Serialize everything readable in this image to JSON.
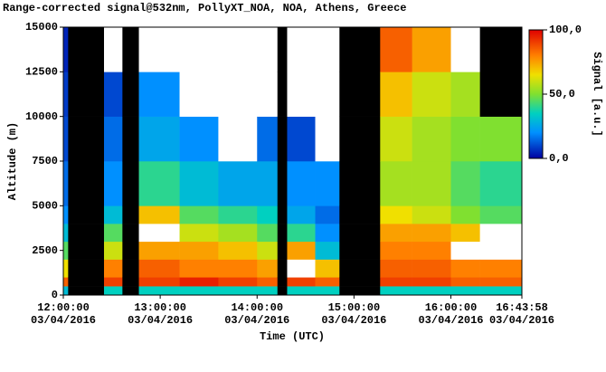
{
  "chart_data": {
    "type": "heatmap",
    "title": "Range-corrected signal@532nm, PollyXT_NOA, NOA, Athens, Greece",
    "x_label": "Time (UTC)",
    "y_label": "Altitude (m)",
    "colorbar_label": "Signal [a.u.]",
    "xlim": [
      12,
      16.7328
    ],
    "xticks": [
      {
        "value": 12,
        "label": [
          "12:00:00",
          "03/04/2016"
        ]
      },
      {
        "value": 13,
        "label": [
          "13:00:00",
          "03/04/2016"
        ]
      },
      {
        "value": 14,
        "label": [
          "14:00:00",
          "03/04/2016"
        ]
      },
      {
        "value": 15,
        "label": [
          "15:00:00",
          "03/04/2016"
        ]
      },
      {
        "value": 16,
        "label": [
          "16:00:00",
          "03/04/2016"
        ]
      },
      {
        "value": 16.7328,
        "label": [
          "16:43:58",
          "03/04/2016"
        ]
      }
    ],
    "ylim": [
      0,
      15000
    ],
    "yticks": [
      0,
      2500,
      5000,
      7500,
      10000,
      12500,
      15000
    ],
    "clim": [
      0,
      100
    ],
    "cticks": [
      {
        "value": 0,
        "label": "0,0"
      },
      {
        "value": 50,
        "label": "50,0"
      },
      {
        "value": 100,
        "label": "100,0"
      }
    ],
    "missing_color": "#000000",
    "x_edges": [
      12,
      12.05,
      12.42,
      12.61,
      12.78,
      13.2,
      13.6,
      14.0,
      14.21,
      14.31,
      14.6,
      14.85,
      15.27,
      15.6,
      16.0,
      16.3,
      16.7328
    ],
    "y_edges": [
      0,
      500,
      1000,
      2000,
      3000,
      4000,
      5000,
      7500,
      10000,
      12500,
      15000
    ],
    "values": [
      [
        30,
        85,
        65,
        45,
        30,
        20,
        15,
        10,
        8,
        5
      ],
      [
        null,
        null,
        null,
        null,
        null,
        null,
        null,
        null,
        null,
        null
      ],
      [
        35,
        90,
        80,
        60,
        45,
        30,
        20,
        15,
        10,
        110
      ],
      [
        null,
        null,
        null,
        null,
        null,
        null,
        null,
        null,
        null,
        null
      ],
      [
        35,
        90,
        85,
        75,
        105,
        70,
        40,
        25,
        20,
        110
      ],
      [
        35,
        95,
        80,
        75,
        60,
        45,
        30,
        20,
        110,
        110
      ],
      [
        35,
        90,
        80,
        70,
        55,
        40,
        25,
        110,
        110,
        110
      ],
      [
        35,
        85,
        75,
        60,
        45,
        35,
        25,
        15,
        110,
        110
      ],
      [
        null,
        null,
        null,
        null,
        null,
        null,
        null,
        null,
        null,
        null
      ],
      [
        35,
        90,
        105,
        75,
        40,
        25,
        20,
        10,
        110,
        110
      ],
      [
        35,
        85,
        70,
        30,
        20,
        15,
        20,
        110,
        110,
        110
      ],
      [
        null,
        null,
        null,
        null,
        null,
        null,
        null,
        null,
        null,
        null
      ],
      [
        35,
        90,
        85,
        80,
        75,
        65,
        55,
        60,
        70,
        85
      ],
      [
        35,
        90,
        85,
        80,
        75,
        60,
        55,
        55,
        60,
        75
      ],
      [
        35,
        85,
        80,
        105,
        70,
        50,
        45,
        50,
        55,
        110
      ],
      [
        35,
        85,
        80,
        105,
        105,
        45,
        40,
        50,
        -5,
        -5
      ]
    ]
  }
}
